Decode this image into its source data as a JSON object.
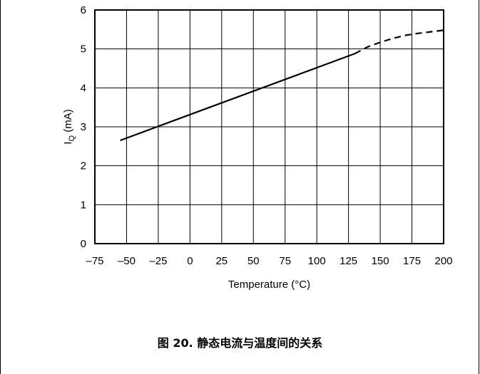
{
  "caption": "图 20. 静态电流与温度间的关系",
  "chart_data": {
    "type": "line",
    "xlabel": "Temperature (°C)",
    "ylabel_main": "I",
    "ylabel_sub": "Q",
    "ylabel_unit": " (mA)",
    "xlim": [
      -75,
      200
    ],
    "ylim": [
      0,
      6
    ],
    "xticks": [
      -75,
      -50,
      -25,
      0,
      25,
      50,
      75,
      100,
      125,
      150,
      175,
      200
    ],
    "xtick_labels": [
      "–75",
      "–50",
      "–25",
      "0",
      "25",
      "50",
      "75",
      "100",
      "125",
      "150",
      "175",
      "200"
    ],
    "yticks": [
      0,
      1,
      2,
      3,
      4,
      5,
      6
    ],
    "ytick_labels": [
      "0",
      "1",
      "2",
      "3",
      "4",
      "5",
      "6"
    ],
    "grid": true,
    "series": [
      {
        "style": "solid",
        "x": [
          -55,
          130
        ],
        "y": [
          2.65,
          4.88
        ]
      },
      {
        "style": "dashed",
        "x": [
          130,
          140,
          150,
          160,
          170,
          180,
          190,
          200
        ],
        "y": [
          4.88,
          5.05,
          5.17,
          5.27,
          5.35,
          5.4,
          5.44,
          5.48
        ]
      }
    ]
  }
}
